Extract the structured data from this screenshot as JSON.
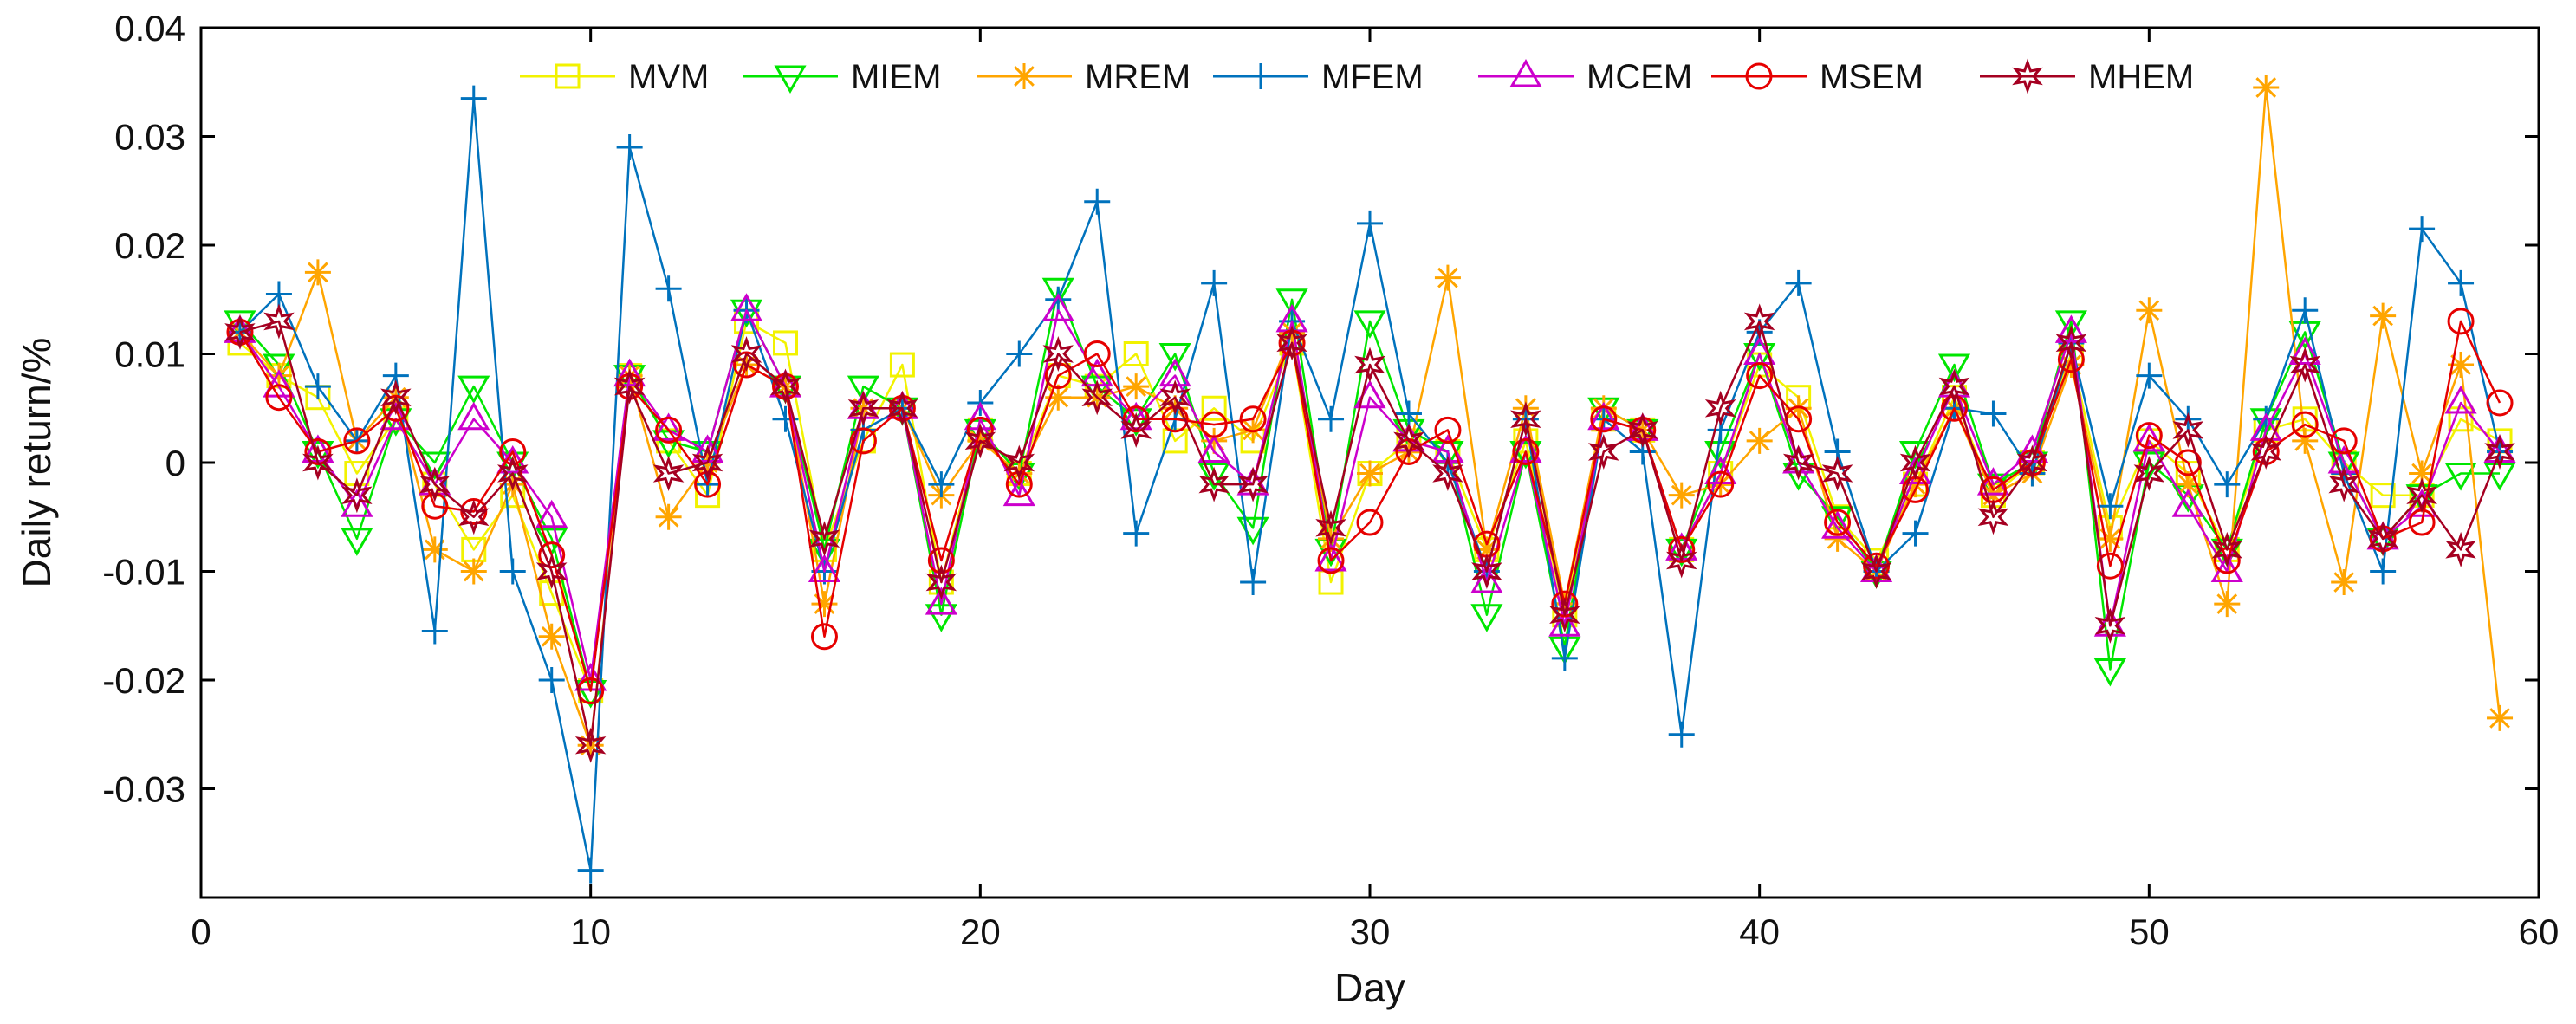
{
  "chart_data": {
    "type": "line",
    "title": "",
    "xlabel": "Day",
    "ylabel": "Daily return/%",
    "xlim": [
      0,
      60
    ],
    "ylim": [
      -0.04,
      0.04
    ],
    "xticks": [
      0,
      10,
      20,
      30,
      40,
      50,
      60
    ],
    "yticks": [
      -0.03,
      -0.02,
      -0.01,
      0,
      0.01,
      0.02,
      0.03,
      0.04
    ],
    "xtick_labels": [
      "0",
      "10",
      "20",
      "30",
      "40",
      "50",
      "60"
    ],
    "ytick_labels": [
      "-0.03",
      "-0.02",
      "-0.01",
      "0",
      "0.01",
      "0.02",
      "0.03",
      "0.04"
    ],
    "grid": false,
    "legend_position": "top",
    "x": [
      1,
      2,
      3,
      4,
      5,
      6,
      7,
      8,
      9,
      10,
      11,
      12,
      13,
      14,
      15,
      16,
      17,
      18,
      19,
      20,
      21,
      22,
      23,
      24,
      25,
      26,
      27,
      28,
      29,
      30,
      31,
      32,
      33,
      34,
      35,
      36,
      37,
      38,
      39,
      40,
      41,
      42,
      43,
      44,
      45,
      46,
      47,
      48,
      49,
      50,
      51,
      52,
      53,
      54,
      55,
      56,
      57,
      58,
      59
    ],
    "series": [
      {
        "name": "MVM",
        "color": "#f2f200",
        "marker": "square",
        "values": [
          0.011,
          0.008,
          0.006,
          -0.001,
          0.004,
          -0.002,
          -0.008,
          -0.003,
          -0.012,
          -0.021,
          0.008,
          0.002,
          -0.003,
          0.013,
          0.011,
          -0.008,
          0.002,
          0.009,
          -0.011,
          0.003,
          -0.001,
          0.008,
          0.007,
          0.01,
          0.002,
          0.005,
          0.002,
          0.011,
          -0.011,
          -0.001,
          0.002,
          0.001,
          -0.008,
          0.002,
          -0.014,
          0.004,
          0.003,
          -0.008,
          -0.001,
          0.009,
          0.006,
          -0.005,
          -0.009,
          -0.002,
          0.006,
          -0.003,
          0.0,
          0.01,
          -0.006,
          0.002,
          -0.001,
          -0.008,
          0.003,
          0.004,
          0.0,
          -0.003,
          -0.003,
          0.004,
          0.002
        ]
      },
      {
        "name": "MIEM",
        "color": "#00e600",
        "marker": "triangle-down",
        "values": [
          0.013,
          0.009,
          0.001,
          -0.007,
          0.004,
          0.0,
          0.007,
          0.0,
          -0.007,
          -0.021,
          0.008,
          0.002,
          0.001,
          0.014,
          0.007,
          -0.008,
          0.007,
          0.005,
          -0.014,
          0.003,
          -0.001,
          0.016,
          0.007,
          0.004,
          0.01,
          -0.001,
          -0.006,
          0.015,
          -0.008,
          0.013,
          0.003,
          0.001,
          -0.014,
          0.001,
          -0.017,
          0.005,
          0.003,
          -0.008,
          0.001,
          0.01,
          -0.001,
          -0.005,
          -0.01,
          0.001,
          0.009,
          -0.002,
          0.0,
          0.013,
          -0.019,
          0.0,
          -0.003,
          -0.008,
          0.004,
          0.012,
          0.0,
          -0.007,
          -0.003,
          -0.001,
          -0.001
        ]
      },
      {
        "name": "MREM",
        "color": "#ffa500",
        "marker": "asterisk",
        "values": [
          0.012,
          0.008,
          0.0175,
          0.002,
          0.006,
          -0.008,
          -0.01,
          -0.002,
          -0.016,
          -0.026,
          0.008,
          -0.005,
          0.0,
          0.009,
          0.007,
          -0.013,
          0.005,
          0.005,
          -0.003,
          0.002,
          -0.001,
          0.006,
          0.006,
          0.007,
          0.005,
          0.002,
          0.003,
          0.012,
          -0.007,
          -0.001,
          0.001,
          0.017,
          -0.008,
          0.005,
          -0.013,
          0.005,
          0.003,
          -0.003,
          -0.002,
          0.002,
          0.005,
          -0.007,
          -0.01,
          -0.002,
          0.005,
          -0.003,
          -0.001,
          0.009,
          -0.007,
          0.014,
          -0.002,
          -0.013,
          0.0345,
          0.002,
          -0.011,
          0.0135,
          -0.001,
          0.009,
          -0.0235
        ]
      },
      {
        "name": "MFEM",
        "color": "#0072bd",
        "marker": "plus",
        "values": [
          0.012,
          0.0155,
          0.007,
          0.002,
          0.008,
          -0.0155,
          0.0335,
          -0.01,
          -0.02,
          -0.0375,
          0.029,
          0.016,
          -0.002,
          0.014,
          0.004,
          -0.01,
          0.003,
          0.005,
          -0.002,
          0.0055,
          0.01,
          0.015,
          0.024,
          -0.0065,
          0.004,
          0.0165,
          -0.011,
          0.013,
          0.004,
          0.022,
          0.0045,
          0.0,
          -0.01,
          0.004,
          -0.018,
          0.004,
          0.001,
          -0.025,
          0.003,
          0.012,
          0.0165,
          0.001,
          -0.01,
          -0.0065,
          0.005,
          0.0045,
          -0.001,
          0.011,
          -0.004,
          0.008,
          0.004,
          -0.002,
          0.004,
          0.014,
          -0.001,
          -0.01,
          0.0215,
          0.0165,
          0.001
        ]
      },
      {
        "name": "MCEM",
        "color": "#cc00cc",
        "marker": "triangle-up",
        "values": [
          0.012,
          0.007,
          0.001,
          -0.004,
          0.004,
          -0.002,
          0.004,
          0.0,
          -0.005,
          -0.02,
          0.008,
          0.003,
          0.001,
          0.014,
          0.007,
          -0.01,
          0.005,
          0.005,
          -0.013,
          0.004,
          -0.003,
          0.014,
          0.008,
          0.004,
          0.008,
          0.001,
          -0.002,
          0.013,
          -0.009,
          0.006,
          0.002,
          0.001,
          -0.011,
          0.001,
          -0.015,
          0.004,
          0.003,
          -0.008,
          -0.001,
          0.01,
          0.0,
          -0.006,
          -0.01,
          -0.001,
          0.007,
          -0.002,
          0.001,
          0.012,
          -0.015,
          0.002,
          -0.004,
          -0.01,
          0.003,
          0.01,
          0.0,
          -0.007,
          -0.004,
          0.0055,
          0.001
        ]
      },
      {
        "name": "MSEM",
        "color": "#e60000",
        "marker": "circle",
        "values": [
          0.012,
          0.006,
          0.001,
          0.002,
          0.005,
          -0.004,
          -0.0045,
          0.001,
          -0.0085,
          -0.021,
          0.007,
          0.003,
          -0.002,
          0.009,
          0.007,
          -0.016,
          0.002,
          0.005,
          -0.009,
          0.003,
          -0.002,
          0.008,
          0.01,
          0.004,
          0.004,
          0.0035,
          0.004,
          0.011,
          -0.009,
          -0.0055,
          0.001,
          0.003,
          -0.0075,
          0.001,
          -0.013,
          0.004,
          0.003,
          -0.008,
          -0.002,
          0.008,
          0.004,
          -0.0055,
          -0.0095,
          -0.0025,
          0.005,
          -0.0025,
          0.0,
          0.0095,
          -0.0095,
          0.0025,
          0.0,
          -0.009,
          0.001,
          0.0035,
          0.002,
          -0.007,
          -0.0055,
          0.013,
          0.0055
        ]
      },
      {
        "name": "MHEM",
        "color": "#a50021",
        "marker": "hexagram",
        "values": [
          0.012,
          0.013,
          0.0,
          -0.003,
          0.006,
          -0.002,
          -0.005,
          -0.001,
          -0.01,
          -0.026,
          0.007,
          -0.001,
          0.0,
          0.01,
          0.007,
          -0.007,
          0.005,
          0.005,
          -0.011,
          0.002,
          0.0,
          0.01,
          0.006,
          0.003,
          0.006,
          -0.002,
          -0.002,
          0.011,
          -0.006,
          0.009,
          0.002,
          -0.001,
          -0.01,
          0.004,
          -0.014,
          0.001,
          0.003,
          -0.009,
          0.005,
          0.013,
          0.0,
          -0.001,
          -0.01,
          0.0,
          0.007,
          -0.005,
          0.0,
          0.011,
          -0.015,
          -0.001,
          0.003,
          -0.008,
          0.001,
          0.009,
          -0.002,
          -0.007,
          -0.003,
          -0.008,
          0.001
        ]
      }
    ]
  }
}
